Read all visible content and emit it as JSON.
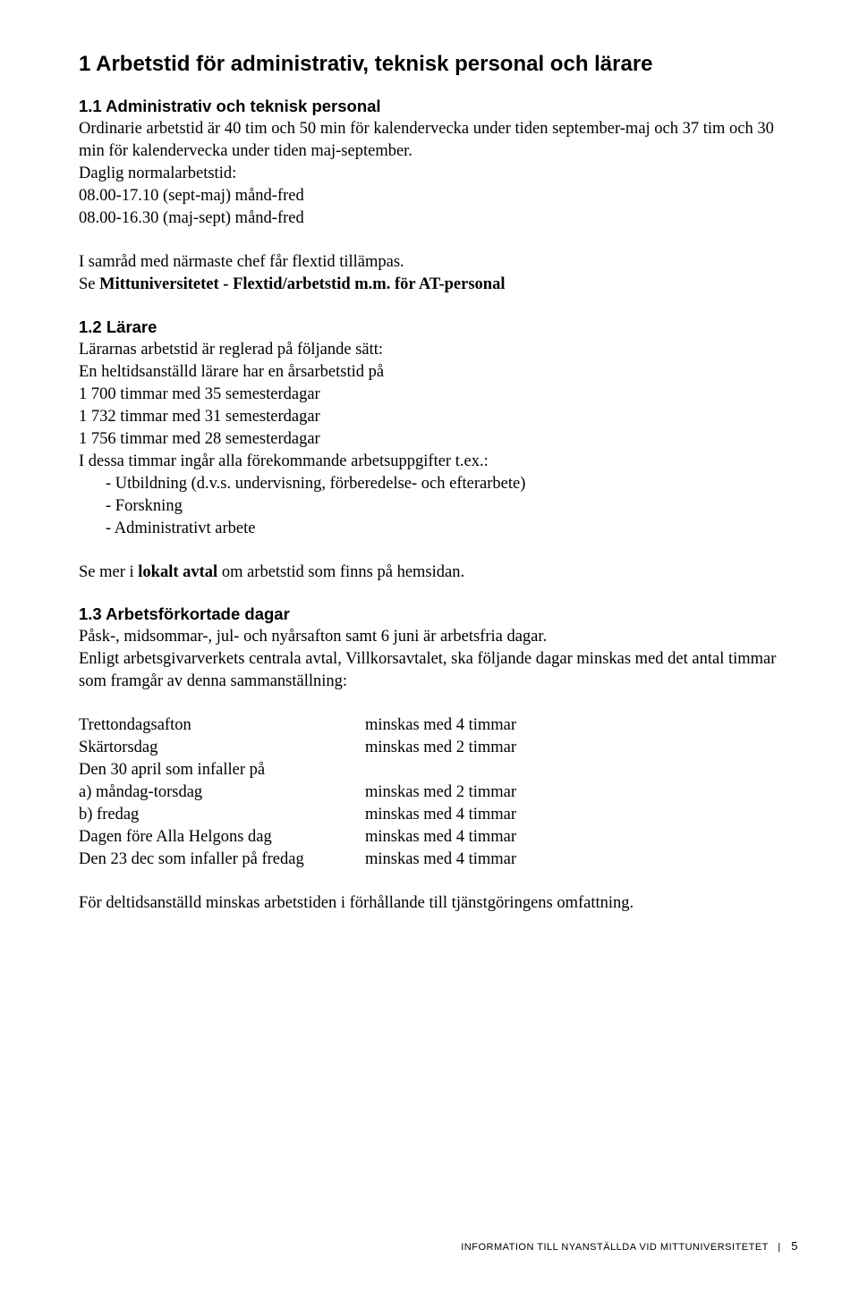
{
  "h1": "1  Arbetstid för administrativ, teknisk personal och lärare",
  "s11": {
    "heading": "1.1  Administrativ och teknisk personal",
    "p1": "Ordinarie arbetstid är 40 tim och 50 min för kalendervecka under tiden september-maj och 37 tim och 30 min för kalendervecka under tiden maj-september.",
    "p2a": "Daglig normalarbetstid:",
    "p2b": "08.00-17.10 (sept-maj) månd-fred",
    "p2c": "08.00-16.30 (maj-sept) månd-fred",
    "p3a": "I samråd med närmaste chef får flextid tillämpas.",
    "p3b_pre": "Se ",
    "p3b_bold": "Mittuniversitetet - Flextid/arbetstid m.m. för AT-personal"
  },
  "s12": {
    "heading": "1.2  Lärare",
    "p1": "Lärarnas arbetstid är reglerad på följande sätt:",
    "p2": "En heltidsanställd lärare har en årsarbetstid på",
    "li1": "1 700 timmar med 35 semesterdagar",
    "li2": "1 732 timmar med 31 semesterdagar",
    "li3": "1 756 timmar med 28 semesterdagar",
    "p3": "I dessa timmar ingår alla förekommande arbetsuppgifter t.ex.:",
    "b1": "- Utbildning (d.v.s. undervisning, förberedelse- och efterarbete)",
    "b2": "- Forskning",
    "b3": "- Administrativt arbete",
    "p4_pre": "Se mer i ",
    "p4_bold": "lokalt avtal",
    "p4_post": " om arbetstid som finns på hemsidan."
  },
  "s13": {
    "heading": "1.3  Arbetsförkortade dagar",
    "p1": "Påsk-, midsommar-, jul- och nyårsafton samt 6 juni är arbetsfria dagar.",
    "p2": "Enligt arbetsgivarverkets centrala avtal, Villkorsavtalet, ska följande dagar minskas med det antal timmar som framgår av denna sammanställning:",
    "rows": [
      {
        "l": "Trettondagsafton",
        "r": "minskas med 4 timmar"
      },
      {
        "l": "Skärtorsdag",
        "r": "minskas med 2 timmar"
      },
      {
        "l": "Den 30 april som infaller på",
        "r": ""
      },
      {
        "l": "a) måndag-torsdag",
        "r": "minskas med 2 timmar"
      },
      {
        "l": "b) fredag",
        "r": "minskas med 4 timmar"
      },
      {
        "l": "Dagen före Alla Helgons dag",
        "r": "minskas med 4 timmar"
      },
      {
        "l": "Den 23 dec som infaller på fredag",
        "r": "minskas med 4 timmar"
      }
    ],
    "p3": "För deltidsanställd minskas arbetstiden i förhållande till tjänstgöringens omfattning."
  },
  "footer": {
    "text": "INFORMATION TILL NYANSTÄLLDA VID MITTUNIVERSITETET",
    "sep": "|",
    "page": "5"
  }
}
